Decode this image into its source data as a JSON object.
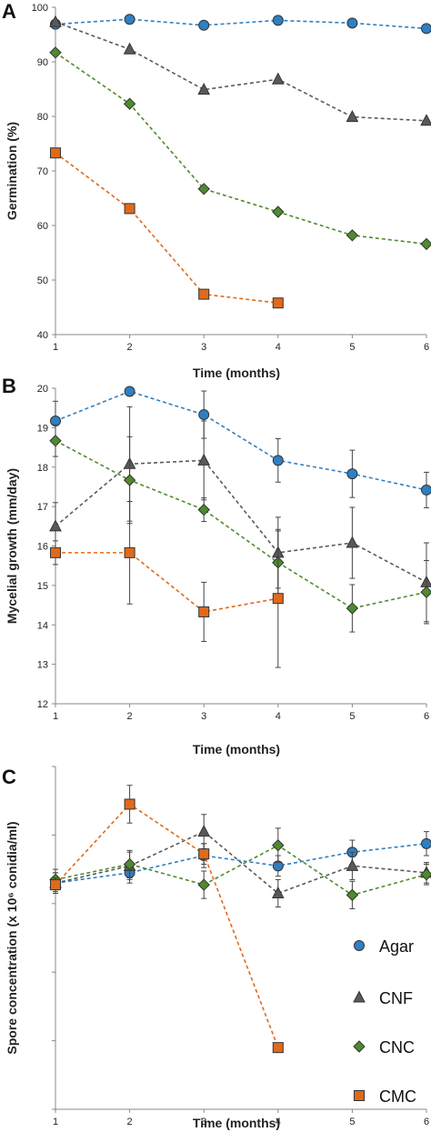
{
  "colors": {
    "Agar": "#2f7fc1",
    "CNF": "#595959",
    "CNC": "#4e8a2e",
    "CMC": "#e06a1b"
  },
  "markers": {
    "Agar": "circle",
    "CNF": "triangle",
    "CNC": "diamond",
    "CMC": "square"
  },
  "legend": {
    "position": "lower-right of panel C",
    "entries": [
      "Agar",
      "CNF",
      "CNC",
      "CMC"
    ]
  },
  "chart_data": [
    {
      "panel": "A",
      "type": "line",
      "xlabel": "Time (months)",
      "ylabel": "Germination (%)",
      "x": [
        1,
        2,
        3,
        4,
        5,
        6
      ],
      "xticks": [
        "1",
        "2",
        "3",
        "4",
        "5",
        "6"
      ],
      "yticks": [
        "40",
        "50",
        "60",
        "70",
        "80",
        "90",
        "100"
      ],
      "ylim": [
        40,
        100
      ],
      "grid": false,
      "series": [
        {
          "name": "Agar",
          "values": [
            96.9,
            97.8,
            96.7,
            97.6,
            97.1,
            96.1
          ]
        },
        {
          "name": "CNF",
          "values": [
            97.3,
            92.3,
            84.9,
            86.8,
            79.9,
            79.2
          ]
        },
        {
          "name": "CNC",
          "values": [
            91.7,
            82.3,
            66.7,
            62.5,
            58.2,
            56.6
          ]
        },
        {
          "name": "CMC",
          "values": [
            73.3,
            63.1,
            47.4,
            45.8,
            null,
            null
          ]
        }
      ]
    },
    {
      "panel": "B",
      "type": "line",
      "xlabel": "Time (months)",
      "ylabel": "Mycelial growth (mm/day)",
      "x": [
        1,
        2,
        3,
        4,
        5,
        6
      ],
      "xticks": [
        "1",
        "2",
        "3",
        "4",
        "5",
        "6"
      ],
      "yticks": [
        "12",
        "13",
        "14",
        "15",
        "16",
        "17",
        "18",
        "19",
        "20"
      ],
      "ylim": [
        12,
        20
      ],
      "grid": false,
      "series": [
        {
          "name": "Agar",
          "values": [
            19.17,
            19.92,
            19.33,
            18.17,
            17.83,
            17.42
          ],
          "errors": [
            0.5,
            0,
            0.6,
            0.55,
            0.6,
            0.45
          ]
        },
        {
          "name": "CNF",
          "values": [
            16.5,
            18.08,
            18.17,
            15.83,
            16.08,
            15.08
          ],
          "errors": [
            0.6,
            1.45,
            1.0,
            0.9,
            0.9,
            1.0
          ]
        },
        {
          "name": "CNC",
          "values": [
            18.67,
            17.67,
            16.92,
            15.58,
            14.42,
            14.83
          ],
          "errors": [
            0.4,
            1.1,
            0.3,
            0.8,
            0.6,
            0.8
          ]
        },
        {
          "name": "CMC",
          "values": [
            15.83,
            15.83,
            14.33,
            14.67,
            null,
            null
          ],
          "errors": [
            0.3,
            1.3,
            0.75,
            1.75,
            0,
            0
          ]
        }
      ]
    },
    {
      "panel": "C",
      "type": "line",
      "xlabel": "Time (months)",
      "ylabel": "Spore concentration (x 10⁶ conidia/ml)",
      "x": [
        1,
        2,
        3,
        4,
        5,
        6
      ],
      "xticks": [
        "1",
        "2",
        "3",
        "4",
        "5",
        "6"
      ],
      "yticks": [],
      "ylim": [
        0,
        10
      ],
      "grid": false,
      "series": [
        {
          "name": "Agar",
          "values": [
            6.6,
            6.9,
            7.4,
            7.1,
            7.5,
            7.75
          ],
          "errors": [
            0.3,
            0.3,
            0.35,
            0.3,
            0.35,
            0.35
          ]
        },
        {
          "name": "CNF",
          "values": [
            6.6,
            7.1,
            8.1,
            6.3,
            7.1,
            6.9
          ],
          "errors": [
            0.3,
            0.4,
            0.5,
            0.4,
            0.4,
            0.3
          ]
        },
        {
          "name": "CNC",
          "values": [
            6.7,
            7.15,
            6.55,
            7.7,
            6.25,
            6.85
          ],
          "errors": [
            0.3,
            0.4,
            0.4,
            0.5,
            0.4,
            0.3
          ]
        },
        {
          "name": "CMC",
          "values": [
            6.55,
            8.9,
            7.45,
            1.8,
            null,
            null
          ],
          "errors": [
            0.2,
            0.55,
            0.3,
            0,
            0,
            0
          ]
        }
      ]
    }
  ]
}
